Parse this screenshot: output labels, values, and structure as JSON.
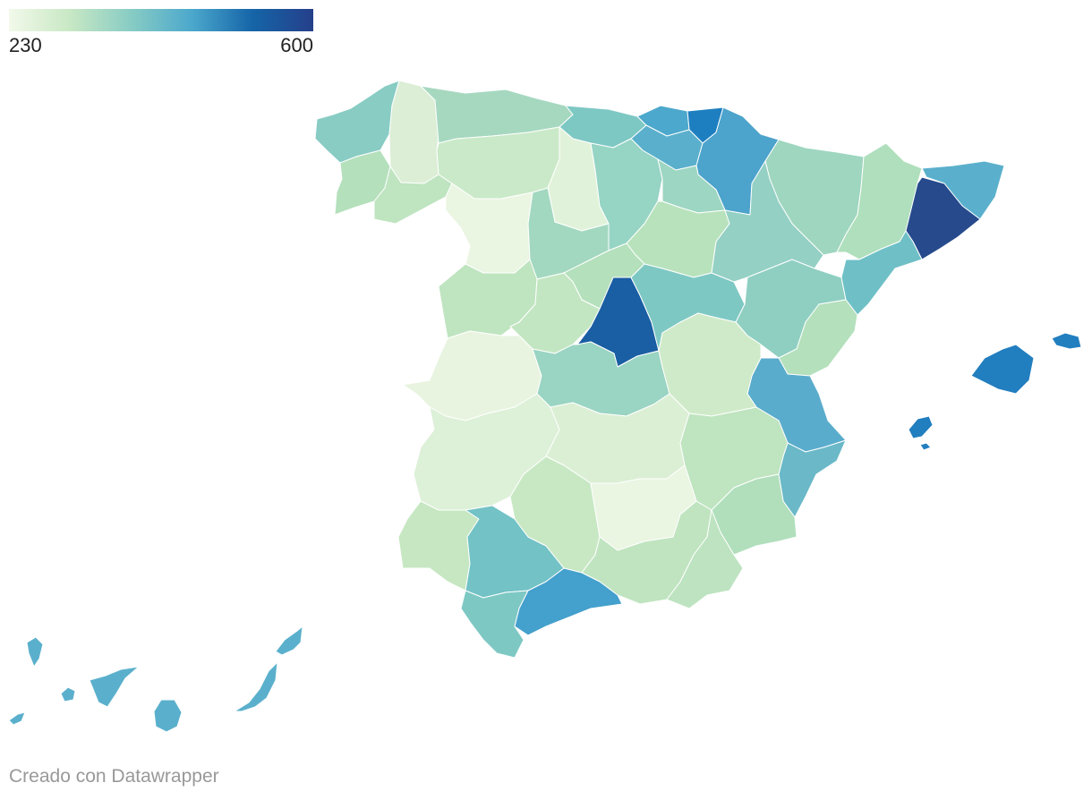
{
  "legend": {
    "min_label": "230",
    "max_label": "600",
    "min_value": 230,
    "max_value": 600,
    "colors": [
      "#f2f9ea",
      "#c8e8c4",
      "#88ccc4",
      "#4ca8cc",
      "#1565a8",
      "#253f8a"
    ]
  },
  "credit": "Creado con Datawrapper",
  "regions": [
    {
      "name": "galicia-coruna",
      "fill": "#88ccc4"
    },
    {
      "name": "galicia-lugo",
      "fill": "#dceed6"
    },
    {
      "name": "galicia-pontevedra",
      "fill": "#b4e0bc"
    },
    {
      "name": "galicia-ourense",
      "fill": "#bfe4c0"
    },
    {
      "name": "asturias",
      "fill": "#a6d8c0"
    },
    {
      "name": "cantabria",
      "fill": "#7ec8c4"
    },
    {
      "name": "vizcaya",
      "fill": "#4ca8cc"
    },
    {
      "name": "guipuzcoa",
      "fill": "#1e7fc0"
    },
    {
      "name": "alava",
      "fill": "#5ab0cc"
    },
    {
      "name": "navarra",
      "fill": "#4ca3cc"
    },
    {
      "name": "leon",
      "fill": "#cae9c8"
    },
    {
      "name": "palencia",
      "fill": "#e1f2da"
    },
    {
      "name": "burgos",
      "fill": "#96d4c4"
    },
    {
      "name": "la-rioja",
      "fill": "#9dd6c2"
    },
    {
      "name": "zamora",
      "fill": "#eaf5e2"
    },
    {
      "name": "valladolid",
      "fill": "#a3d8c0"
    },
    {
      "name": "soria",
      "fill": "#b8e2bc"
    },
    {
      "name": "segovia",
      "fill": "#b4e0bc"
    },
    {
      "name": "salamanca",
      "fill": "#bfe4c0"
    },
    {
      "name": "avila",
      "fill": "#c3e6c2"
    },
    {
      "name": "madrid",
      "fill": "#1a5ea3"
    },
    {
      "name": "guadalajara",
      "fill": "#7ec8c4"
    },
    {
      "name": "huesca",
      "fill": "#9fd6c0"
    },
    {
      "name": "zaragoza",
      "fill": "#94d0c4"
    },
    {
      "name": "teruel",
      "fill": "#8fcfc2"
    },
    {
      "name": "lleida",
      "fill": "#afdfbc"
    },
    {
      "name": "girona",
      "fill": "#5ab0cc"
    },
    {
      "name": "barcelona",
      "fill": "#264a8c"
    },
    {
      "name": "tarragona",
      "fill": "#6fc0c6"
    },
    {
      "name": "castellon",
      "fill": "#b4e0bc"
    },
    {
      "name": "valencia",
      "fill": "#5aaccc"
    },
    {
      "name": "alicante",
      "fill": "#6ab8c8"
    },
    {
      "name": "caceres",
      "fill": "#e8f4e0"
    },
    {
      "name": "toledo",
      "fill": "#9ad4c2"
    },
    {
      "name": "cuenca",
      "fill": "#cfeac8"
    },
    {
      "name": "badajoz",
      "fill": "#ddf0d8"
    },
    {
      "name": "ciudad-real",
      "fill": "#dbefd4"
    },
    {
      "name": "albacete",
      "fill": "#bfe4c0"
    },
    {
      "name": "murcia",
      "fill": "#b1dfbc"
    },
    {
      "name": "huelva",
      "fill": "#c6e7c2"
    },
    {
      "name": "sevilla",
      "fill": "#72c2c6"
    },
    {
      "name": "cordoba",
      "fill": "#c8e8c4"
    },
    {
      "name": "jaen",
      "fill": "#eaf5e2"
    },
    {
      "name": "granada",
      "fill": "#c0e4c0"
    },
    {
      "name": "almeria",
      "fill": "#bde3c0"
    },
    {
      "name": "cadiz",
      "fill": "#7ec8c4"
    },
    {
      "name": "malaga",
      "fill": "#44a0cc"
    },
    {
      "name": "mallorca",
      "fill": "#217ebf"
    },
    {
      "name": "menorca",
      "fill": "#217ebf"
    },
    {
      "name": "ibiza",
      "fill": "#217ebf"
    },
    {
      "name": "formentera",
      "fill": "#217ebf"
    },
    {
      "name": "la-palma",
      "fill": "#5ab0cc"
    },
    {
      "name": "el-hierro",
      "fill": "#5ab0cc"
    },
    {
      "name": "la-gomera",
      "fill": "#5ab0cc"
    },
    {
      "name": "tenerife",
      "fill": "#5ab0cc"
    },
    {
      "name": "gran-canaria",
      "fill": "#5ab0cc"
    },
    {
      "name": "fuerteventura",
      "fill": "#5ab0cc"
    },
    {
      "name": "lanzarote",
      "fill": "#5ab0cc"
    }
  ]
}
